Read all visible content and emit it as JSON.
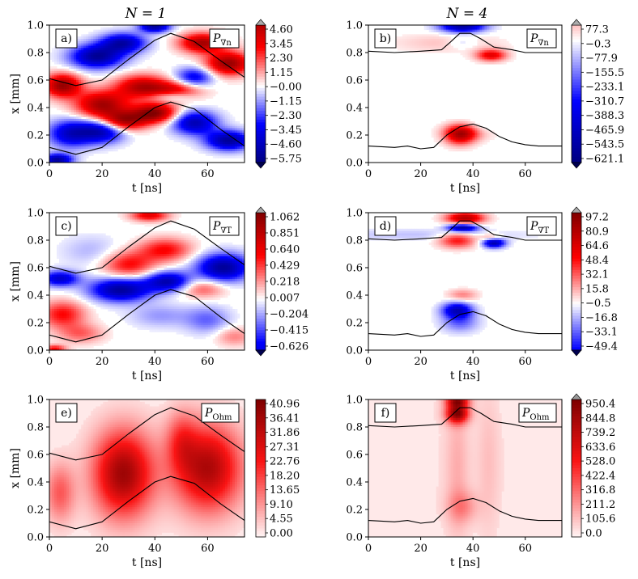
{
  "figure": {
    "column_titles": [
      "N = 1",
      "N = 4"
    ]
  },
  "chart_data": [
    {
      "type": "heatmap",
      "panel": "a)",
      "quantity_label": "P∇n",
      "quantity_main": "P",
      "quantity_sub": "∇n",
      "xlabel": "t [ns]",
      "ylabel": "x [mm]",
      "xlim": [
        0,
        74
      ],
      "ylim": [
        0,
        1
      ],
      "xticks": [
        0,
        20,
        40,
        60
      ],
      "yticks": [
        0.0,
        0.2,
        0.4,
        0.6,
        0.8,
        1.0
      ],
      "xtick_labels": [
        "0",
        "20",
        "40",
        "60"
      ],
      "ytick_labels": [
        "0.0",
        "0.2",
        "0.4",
        "0.6",
        "0.8",
        "1.0"
      ],
      "colormap": "seismic",
      "extend": "both",
      "vmin": -5.75,
      "vmax": 4.6,
      "colorbar_ticks": [
        "4.60",
        "3.45",
        "2.30",
        "1.15",
        "−0.00",
        "−1.15",
        "−2.30",
        "−3.45",
        "−4.60",
        "−5.75"
      ],
      "boundaries": [
        {
          "t": [
            0,
            10,
            20,
            30,
            40,
            46,
            55,
            65,
            74
          ],
          "x": [
            0.61,
            0.56,
            0.6,
            0.75,
            0.89,
            0.94,
            0.88,
            0.74,
            0.62
          ]
        },
        {
          "t": [
            0,
            10,
            20,
            30,
            40,
            46,
            55,
            65,
            74
          ],
          "x": [
            0.11,
            0.06,
            0.11,
            0.26,
            0.4,
            0.44,
            0.39,
            0.24,
            0.12
          ]
        }
      ],
      "blobs": [
        {
          "t": 5,
          "x": 0.56,
          "amp": 0.9,
          "st": 5,
          "sx": 0.06
        },
        {
          "t": 18,
          "x": 0.77,
          "amp": -0.9,
          "st": 7,
          "sx": 0.06
        },
        {
          "t": 28,
          "x": 0.87,
          "amp": -0.8,
          "st": 6,
          "sx": 0.05
        },
        {
          "t": 40,
          "x": 0.99,
          "amp": -0.9,
          "st": 4,
          "sx": 0.03
        },
        {
          "t": 58,
          "x": 0.87,
          "amp": 0.85,
          "st": 6,
          "sx": 0.05
        },
        {
          "t": 68,
          "x": 0.72,
          "amp": 0.9,
          "st": 6,
          "sx": 0.06
        },
        {
          "t": 55,
          "x": 0.62,
          "amp": -0.6,
          "st": 5,
          "sx": 0.05
        },
        {
          "t": 20,
          "x": 0.42,
          "amp": 0.85,
          "st": 7,
          "sx": 0.07
        },
        {
          "t": 35,
          "x": 0.55,
          "amp": 0.75,
          "st": 7,
          "sx": 0.06
        },
        {
          "t": 48,
          "x": 0.52,
          "amp": 0.6,
          "st": 7,
          "sx": 0.05
        },
        {
          "t": 8,
          "x": 0.21,
          "amp": -0.7,
          "st": 6,
          "sx": 0.07
        },
        {
          "t": 20,
          "x": 0.23,
          "amp": -0.8,
          "st": 6,
          "sx": 0.06
        },
        {
          "t": 28,
          "x": 0.3,
          "amp": 0.85,
          "st": 6,
          "sx": 0.05
        },
        {
          "t": 40,
          "x": 0.36,
          "amp": 0.95,
          "st": 6,
          "sx": 0.05
        },
        {
          "t": 55,
          "x": 0.29,
          "amp": -0.8,
          "st": 6,
          "sx": 0.06
        },
        {
          "t": 68,
          "x": 0.16,
          "amp": -0.9,
          "st": 6,
          "sx": 0.05
        },
        {
          "t": 3,
          "x": 0.02,
          "amp": -0.9,
          "st": 4,
          "sx": 0.03
        },
        {
          "t": 46,
          "x": 0.48,
          "amp": -0.4,
          "st": 6,
          "sx": 0.03
        }
      ]
    },
    {
      "type": "heatmap",
      "panel": "b)",
      "quantity_label": "P∇n",
      "quantity_main": "P",
      "quantity_sub": "∇n",
      "xlabel": "t [ns]",
      "ylabel": "",
      "xlim": [
        0,
        74
      ],
      "ylim": [
        0,
        1
      ],
      "xticks": [
        0,
        20,
        40,
        60
      ],
      "yticks": [
        0.0,
        0.2,
        0.4,
        0.6,
        0.8,
        1.0
      ],
      "xtick_labels": [
        "0",
        "20",
        "40",
        "60"
      ],
      "ytick_labels": [
        "0.0",
        "0.2",
        "0.4",
        "0.6",
        "0.8",
        "1.0"
      ],
      "colormap": "seismic",
      "extend": "both",
      "vmin": -621.1,
      "vmax": 77.3,
      "colorbar_ticks": [
        "77.3",
        "−0.3",
        "−77.9",
        "−155.5",
        "−233.1",
        "−310.7",
        "−388.3",
        "−465.9",
        "−543.5",
        "−621.1"
      ],
      "boundaries": [
        {
          "t": [
            0,
            10,
            20,
            28,
            31,
            35,
            39,
            43,
            48,
            55,
            60,
            74
          ],
          "x": [
            0.81,
            0.8,
            0.81,
            0.82,
            0.87,
            0.94,
            0.94,
            0.9,
            0.84,
            0.82,
            0.8,
            0.8
          ]
        },
        {
          "t": [
            0,
            10,
            15,
            20,
            25,
            30,
            35,
            40,
            45,
            50,
            55,
            60,
            65,
            74
          ],
          "x": [
            0.12,
            0.11,
            0.12,
            0.1,
            0.11,
            0.2,
            0.26,
            0.28,
            0.25,
            0.19,
            0.15,
            0.13,
            0.12,
            0.12
          ]
        }
      ],
      "blobs": [
        {
          "t": 30,
          "x": 0.87,
          "amp": 0.12,
          "st": 15,
          "sx": 0.05
        },
        {
          "t": 36,
          "x": 0.99,
          "amp": -0.9,
          "st": 6,
          "sx": 0.03
        },
        {
          "t": 47,
          "x": 0.78,
          "amp": 0.6,
          "st": 4,
          "sx": 0.03
        },
        {
          "t": 36,
          "x": 0.87,
          "amp": -0.15,
          "st": 4,
          "sx": 0.03
        },
        {
          "t": 35,
          "x": 0.2,
          "amp": 0.65,
          "st": 4,
          "sx": 0.05
        },
        {
          "t": 38,
          "x": 0.22,
          "amp": 0.3,
          "st": 6,
          "sx": 0.04
        },
        {
          "t": 43,
          "x": 0.25,
          "amp": -0.12,
          "st": 4,
          "sx": 0.04
        }
      ]
    },
    {
      "type": "heatmap",
      "panel": "c)",
      "quantity_label": "P∇T",
      "quantity_main": "P",
      "quantity_sub": "∇T",
      "xlabel": "t [ns]",
      "ylabel": "x [mm]",
      "xlim": [
        0,
        74
      ],
      "ylim": [
        0,
        1
      ],
      "xticks": [
        0,
        20,
        40,
        60
      ],
      "yticks": [
        0.0,
        0.2,
        0.4,
        0.6,
        0.8,
        1.0
      ],
      "xtick_labels": [
        "0",
        "20",
        "40",
        "60"
      ],
      "ytick_labels": [
        "0.0",
        "0.2",
        "0.4",
        "0.6",
        "0.8",
        "1.0"
      ],
      "colormap": "seismic",
      "extend": "both",
      "vmin": -0.626,
      "vmax": 1.062,
      "colorbar_ticks": [
        "1.062",
        "0.851",
        "0.640",
        "0.429",
        "0.218",
        "0.007",
        "−0.204",
        "−0.415",
        "−0.626"
      ],
      "boundaries": [
        {
          "t": [
            0,
            10,
            20,
            30,
            40,
            46,
            55,
            65,
            74
          ],
          "x": [
            0.61,
            0.56,
            0.6,
            0.75,
            0.89,
            0.94,
            0.88,
            0.74,
            0.62
          ]
        },
        {
          "t": [
            0,
            10,
            20,
            30,
            40,
            46,
            55,
            65,
            74
          ],
          "x": [
            0.11,
            0.06,
            0.11,
            0.26,
            0.4,
            0.44,
            0.39,
            0.24,
            0.12
          ]
        }
      ],
      "blobs": [
        {
          "t": 4,
          "x": 0.52,
          "amp": -0.7,
          "st": 5,
          "sx": 0.04
        },
        {
          "t": 16,
          "x": 0.72,
          "amp": -0.15,
          "st": 8,
          "sx": 0.08
        },
        {
          "t": 30,
          "x": 0.62,
          "amp": 0.5,
          "st": 7,
          "sx": 0.07
        },
        {
          "t": 44,
          "x": 0.73,
          "amp": 0.5,
          "st": 7,
          "sx": 0.06
        },
        {
          "t": 38,
          "x": 0.98,
          "amp": 0.6,
          "st": 5,
          "sx": 0.03
        },
        {
          "t": 27,
          "x": 0.44,
          "amp": -0.9,
          "st": 8,
          "sx": 0.06
        },
        {
          "t": 45,
          "x": 0.5,
          "amp": -0.8,
          "st": 6,
          "sx": 0.05
        },
        {
          "t": 66,
          "x": 0.6,
          "amp": -0.9,
          "st": 7,
          "sx": 0.07
        },
        {
          "t": 58,
          "x": 0.45,
          "amp": 0.35,
          "st": 6,
          "sx": 0.05
        },
        {
          "t": 5,
          "x": 0.26,
          "amp": 0.5,
          "st": 6,
          "sx": 0.07
        },
        {
          "t": 12,
          "x": 0.12,
          "amp": 0.3,
          "st": 6,
          "sx": 0.05
        },
        {
          "t": 42,
          "x": 0.25,
          "amp": -0.2,
          "st": 8,
          "sx": 0.06
        },
        {
          "t": 60,
          "x": 0.22,
          "amp": -0.3,
          "st": 6,
          "sx": 0.07
        },
        {
          "t": 70,
          "x": 0.1,
          "amp": 0.25,
          "st": 5,
          "sx": 0.05
        },
        {
          "t": 2,
          "x": 0.01,
          "amp": 0.5,
          "st": 3,
          "sx": 0.02
        }
      ]
    },
    {
      "type": "heatmap",
      "panel": "d)",
      "quantity_label": "P∇T",
      "quantity_main": "P",
      "quantity_sub": "∇T",
      "xlabel": "t [ns]",
      "ylabel": "",
      "xlim": [
        0,
        74
      ],
      "ylim": [
        0,
        1
      ],
      "xticks": [
        0,
        20,
        40,
        60
      ],
      "yticks": [
        0.0,
        0.2,
        0.4,
        0.6,
        0.8,
        1.0
      ],
      "xtick_labels": [
        "0",
        "20",
        "40",
        "60"
      ],
      "ytick_labels": [
        "0.0",
        "0.2",
        "0.4",
        "0.6",
        "0.8",
        "1.0"
      ],
      "colormap": "seismic",
      "extend": "both",
      "vmin": -49.4,
      "vmax": 97.2,
      "colorbar_ticks": [
        "97.2",
        "80.9",
        "64.6",
        "48.4",
        "32.1",
        "15.8",
        "−0.5",
        "−16.8",
        "−33.1",
        "−49.4"
      ],
      "boundaries": [
        {
          "t": [
            0,
            10,
            20,
            28,
            31,
            35,
            39,
            43,
            48,
            55,
            60,
            74
          ],
          "x": [
            0.81,
            0.8,
            0.81,
            0.82,
            0.87,
            0.94,
            0.94,
            0.9,
            0.84,
            0.82,
            0.8,
            0.8
          ]
        },
        {
          "t": [
            0,
            10,
            15,
            20,
            25,
            30,
            35,
            40,
            45,
            50,
            55,
            60,
            65,
            74
          ],
          "x": [
            0.12,
            0.11,
            0.12,
            0.1,
            0.11,
            0.2,
            0.26,
            0.28,
            0.25,
            0.19,
            0.15,
            0.13,
            0.12,
            0.12
          ]
        }
      ],
      "blobs": [
        {
          "t": 37,
          "x": 0.96,
          "amp": 0.8,
          "st": 5,
          "sx": 0.03
        },
        {
          "t": 36,
          "x": 0.89,
          "amp": -0.9,
          "st": 4,
          "sx": 0.02
        },
        {
          "t": 34,
          "x": 0.8,
          "amp": 0.5,
          "st": 5,
          "sx": 0.04
        },
        {
          "t": 20,
          "x": 0.84,
          "amp": -0.12,
          "st": 30,
          "sx": 0.03
        },
        {
          "t": 48,
          "x": 0.78,
          "amp": -0.85,
          "st": 3,
          "sx": 0.025
        },
        {
          "t": 47,
          "x": 0.82,
          "amp": 0.3,
          "st": 3,
          "sx": 0.02
        },
        {
          "t": 34,
          "x": 0.29,
          "amp": -0.75,
          "st": 4,
          "sx": 0.04
        },
        {
          "t": 35,
          "x": 0.2,
          "amp": -0.3,
          "st": 5,
          "sx": 0.05
        },
        {
          "t": 36,
          "x": 0.4,
          "amp": 0.25,
          "st": 4,
          "sx": 0.03
        }
      ]
    },
    {
      "type": "heatmap",
      "panel": "e)",
      "quantity_label": "POhm",
      "quantity_main": "P",
      "quantity_sub": "Ohm",
      "xlabel": "t [ns]",
      "ylabel": "x [mm]",
      "xlim": [
        0,
        74
      ],
      "ylim": [
        0,
        1
      ],
      "xticks": [
        0,
        20,
        40,
        60
      ],
      "yticks": [
        0.0,
        0.2,
        0.4,
        0.6,
        0.8,
        1.0
      ],
      "xtick_labels": [
        "0",
        "20",
        "40",
        "60"
      ],
      "ytick_labels": [
        "0.0",
        "0.2",
        "0.4",
        "0.6",
        "0.8",
        "1.0"
      ],
      "colormap": "white-red",
      "extend": "none",
      "vmin": 0.0,
      "vmax": 40.96,
      "colorbar_ticks": [
        "40.96",
        "36.41",
        "31.86",
        "27.31",
        "22.76",
        "18.20",
        "13.65",
        "9.10",
        "4.55",
        "0.00"
      ],
      "boundaries": [
        {
          "t": [
            0,
            10,
            20,
            30,
            40,
            46,
            55,
            65,
            74
          ],
          "x": [
            0.61,
            0.56,
            0.6,
            0.75,
            0.89,
            0.94,
            0.88,
            0.74,
            0.62
          ]
        },
        {
          "t": [
            0,
            10,
            20,
            30,
            40,
            46,
            55,
            65,
            74
          ],
          "x": [
            0.11,
            0.06,
            0.11,
            0.26,
            0.4,
            0.44,
            0.39,
            0.24,
            0.12
          ]
        }
      ],
      "blobs": [
        {
          "t": 28,
          "x": 0.46,
          "amp": 0.85,
          "st": 8,
          "sx": 0.22
        },
        {
          "t": 60,
          "x": 0.5,
          "amp": 0.8,
          "st": 9,
          "sx": 0.22
        },
        {
          "t": 4,
          "x": 0.32,
          "amp": 0.35,
          "st": 4,
          "sx": 0.15
        },
        {
          "t": 50,
          "x": 0.7,
          "amp": 0.3,
          "st": 4,
          "sx": 0.15
        }
      ]
    },
    {
      "type": "heatmap",
      "panel": "f)",
      "quantity_label": "POhm",
      "quantity_main": "P",
      "quantity_sub": "Ohm",
      "xlabel": "t [ns]",
      "ylabel": "",
      "xlim": [
        0,
        74
      ],
      "ylim": [
        0,
        1
      ],
      "xticks": [
        0,
        20,
        40,
        60
      ],
      "yticks": [
        0.0,
        0.2,
        0.4,
        0.6,
        0.8,
        1.0
      ],
      "xtick_labels": [
        "0",
        "20",
        "40",
        "60"
      ],
      "ytick_labels": [
        "0.0",
        "0.2",
        "0.4",
        "0.6",
        "0.8",
        "1.0"
      ],
      "colormap": "white-red",
      "extend": "max",
      "vmin": 0.0,
      "vmax": 950.4,
      "colorbar_ticks": [
        "950.4",
        "844.8",
        "739.2",
        "633.6",
        "528.0",
        "422.4",
        "316.8",
        "211.2",
        "105.6",
        "0.0"
      ],
      "boundaries": [
        {
          "t": [
            0,
            10,
            20,
            28,
            31,
            35,
            39,
            43,
            48,
            55,
            60,
            74
          ],
          "x": [
            0.81,
            0.8,
            0.81,
            0.82,
            0.87,
            0.94,
            0.94,
            0.9,
            0.84,
            0.82,
            0.8,
            0.8
          ]
        },
        {
          "t": [
            0,
            10,
            15,
            20,
            25,
            30,
            35,
            40,
            45,
            50,
            55,
            60,
            65,
            74
          ],
          "x": [
            0.12,
            0.11,
            0.12,
            0.1,
            0.11,
            0.2,
            0.26,
            0.28,
            0.25,
            0.19,
            0.15,
            0.13,
            0.12,
            0.12
          ]
        }
      ],
      "blobs": [
        {
          "t": 34,
          "x": 0.9,
          "amp": 0.9,
          "st": 3,
          "sx": 0.05
        },
        {
          "t": 34,
          "x": 0.99,
          "amp": 0.7,
          "st": 3,
          "sx": 0.03
        },
        {
          "t": 34,
          "x": 0.5,
          "amp": 0.12,
          "st": 3,
          "sx": 0.4
        },
        {
          "t": 46,
          "x": 0.55,
          "amp": 0.08,
          "st": 3,
          "sx": 0.4
        },
        {
          "t": 36,
          "x": 0.22,
          "amp": 0.2,
          "st": 4,
          "sx": 0.08
        },
        {
          "t": 20,
          "x": 0.5,
          "amp": 0.03,
          "st": 40,
          "sx": 0.5
        }
      ]
    }
  ]
}
